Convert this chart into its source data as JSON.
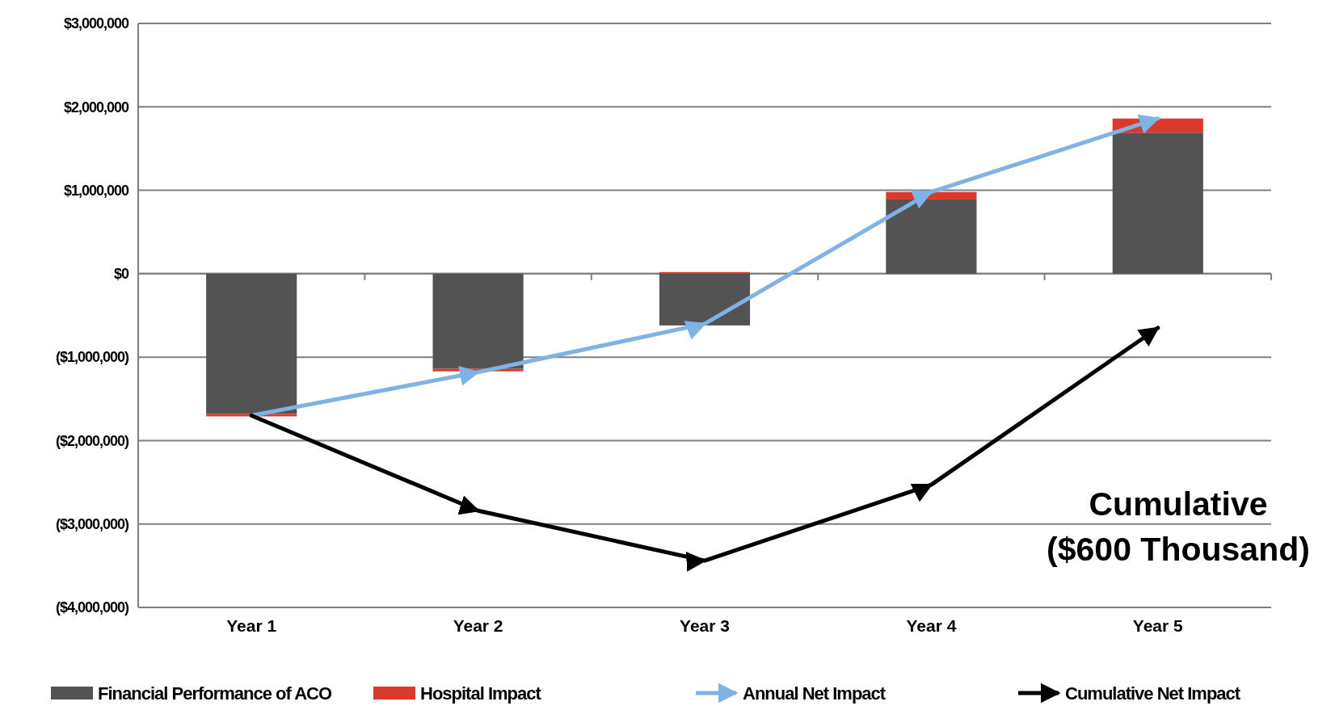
{
  "chart_data": {
    "type": "bar",
    "stacked": true,
    "categories": [
      "Year 1",
      "Year 2",
      "Year 3",
      "Year 4",
      "Year 5"
    ],
    "series": [
      {
        "name": "Financial Performance of ACO",
        "color": "#535353",
        "values": [
          -1680000,
          -1140000,
          -620000,
          890000,
          1690000
        ]
      },
      {
        "name": "Hospital Impact",
        "color": "#d93a2b",
        "values": [
          -30000,
          -30000,
          20000,
          90000,
          170000
        ]
      },
      {
        "name": "Annual Net Impact",
        "type": "line",
        "color": "#7fb2e5",
        "values": [
          -1700000,
          -1180000,
          -600000,
          980000,
          1860000
        ]
      },
      {
        "name": "Cumulative Net Impact",
        "type": "line",
        "color": "#000000",
        "values": [
          -1700000,
          -2840000,
          -3440000,
          -2530000,
          -650000
        ]
      }
    ],
    "ylim": [
      -4000000,
      3000000
    ],
    "yticks": [
      {
        "value": -4000000,
        "label": "($4,000,000)"
      },
      {
        "value": -3000000,
        "label": "($3,000,000)"
      },
      {
        "value": -2000000,
        "label": "($2,000,000)"
      },
      {
        "value": -1000000,
        "label": "($1,000,000)"
      },
      {
        "value": 0,
        "label": "$0"
      },
      {
        "value": 1000000,
        "label": "$1,000,000"
      },
      {
        "value": 2000000,
        "label": "$2,000,000"
      },
      {
        "value": 3000000,
        "label": "$3,000,000"
      }
    ],
    "grid": "y",
    "legend": "bottom",
    "annotations": [
      "Cumulative ($600 Thousand)"
    ]
  }
}
